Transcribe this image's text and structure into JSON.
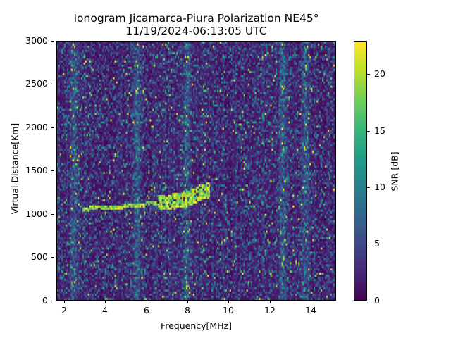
{
  "chart_data": {
    "type": "heatmap",
    "title": "Ionogram Jicamarca-Piura Polarization NE45°",
    "subtitle": "11/19/2024-06:13:05 UTC",
    "xlabel": "Frequency[MHz]",
    "ylabel": "Virtual Distance[Km]",
    "xlim": [
      1.6,
      15.2
    ],
    "ylim": [
      0,
      3000
    ],
    "xticks": [
      2,
      4,
      6,
      8,
      10,
      12,
      14
    ],
    "yticks": [
      0,
      500,
      1000,
      1500,
      2000,
      2500,
      3000
    ],
    "colorbar": {
      "label": "SNR [dB]",
      "range": [
        0,
        23
      ],
      "ticks": [
        0,
        5,
        10,
        15,
        20
      ],
      "colormap": "viridis"
    },
    "grid": false,
    "trace": {
      "description": "Oblique echo trace rising from ~1070 km at 2.8 MHz to ~1300 km at 9 MHz",
      "points": [
        [
          2.8,
          1070
        ],
        [
          4,
          1080
        ],
        [
          5,
          1100
        ],
        [
          6,
          1125
        ],
        [
          7,
          1150
        ],
        [
          8,
          1190
        ],
        [
          8.5,
          1250
        ],
        [
          9,
          1290
        ]
      ]
    },
    "interference_bands_MHz": [
      2.4,
      5.5,
      7.9,
      12.6,
      13.7
    ]
  },
  "title_line1": "Ionogram Jicamarca-Piura Polarization NE45°",
  "title_line2": "11/19/2024-06:13:05 UTC",
  "axes": {
    "xlabel": "Frequency[MHz]",
    "ylabel": "Virtual Distance[Km]",
    "xticks": [
      "2",
      "4",
      "6",
      "8",
      "10",
      "12",
      "14"
    ],
    "yticks": [
      "3000",
      "2500",
      "2000",
      "1500",
      "1000",
      "500",
      "0"
    ]
  },
  "colorbar": {
    "label": "SNR [dB]",
    "ticks": [
      "20",
      "15",
      "10",
      "5",
      "0"
    ]
  }
}
